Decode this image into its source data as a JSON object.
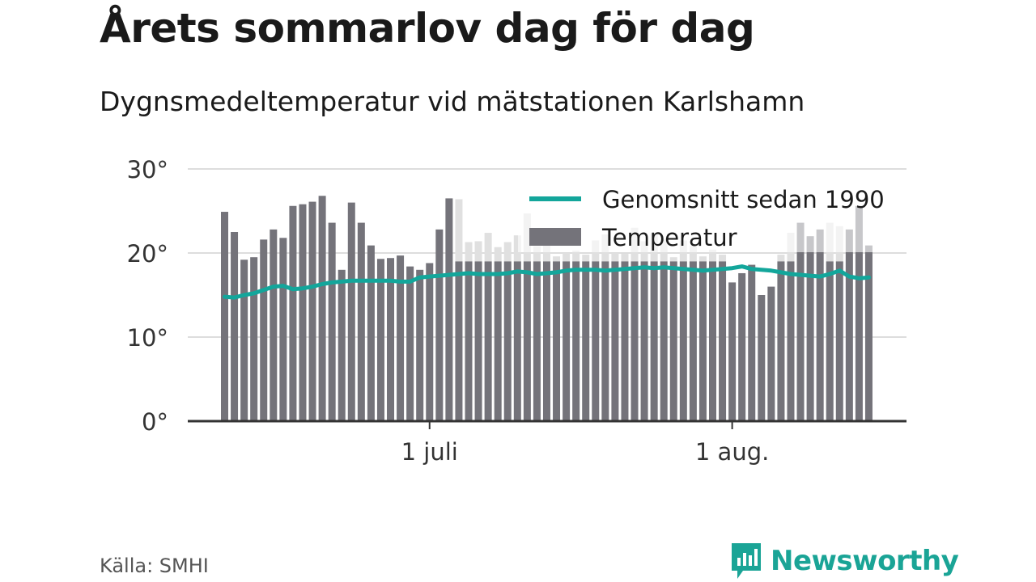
{
  "title": "Årets sommarlov dag för dag",
  "subtitle": "Dygnsmedeltemperatur vid mätstationen Karlshamn",
  "source": "Källa: SMHI",
  "brand": "Newsworthy",
  "colors": {
    "bar_actual": "#74737a",
    "bar_above": "#e0e0e0",
    "avg_line": "#13a69b",
    "brand": "#1aa496",
    "grid": "#dddddd",
    "axis": "#333333"
  },
  "chart_data": {
    "type": "bar",
    "ylim": [
      0,
      30
    ],
    "yticks": [
      0,
      10,
      20,
      30
    ],
    "ytick_labels": [
      "0°",
      "10°",
      "20°",
      "30°"
    ],
    "x_start": "2023-06-10",
    "x_end": "2023-08-16",
    "xticks": [
      {
        "date": "2023-07-01",
        "label": "1 juli"
      },
      {
        "date": "2023-08-01",
        "label": "1 aug."
      }
    ],
    "grid": true,
    "legend_position": "top-right",
    "series": [
      {
        "name": "Temperatur",
        "kind": "bar",
        "values": [
          24.9,
          22.5,
          19.2,
          19.5,
          21.6,
          22.8,
          21.8,
          25.6,
          25.8,
          26.1,
          26.8,
          23.6,
          18.0,
          26.0,
          23.6,
          20.9,
          19.3,
          19.4,
          19.7,
          18.4,
          18.0,
          18.8,
          22.8,
          26.5,
          26.4,
          21.3,
          21.4,
          22.4,
          20.7,
          21.3,
          22.1,
          24.7,
          20.8,
          21.0,
          19.6,
          20.0,
          20.3,
          19.8,
          21.5,
          22.2,
          20.0,
          19.9,
          23.0,
          21.4,
          22.3,
          21.6,
          19.5,
          21.5,
          20.9,
          19.6,
          20.4,
          19.8,
          16.5,
          17.6,
          18.6,
          15.0,
          16.0,
          19.8,
          22.4,
          23.6,
          22.0,
          22.8,
          23.6,
          23.2,
          22.8,
          25.6,
          20.9
        ]
      },
      {
        "name": "Genomsnitt sedan 1990",
        "kind": "line",
        "values": [
          14.8,
          14.7,
          15.0,
          15.2,
          15.6,
          16.0,
          16.1,
          15.7,
          15.8,
          16.0,
          16.3,
          16.5,
          16.6,
          16.7,
          16.7,
          16.7,
          16.7,
          16.7,
          16.6,
          16.6,
          17.1,
          17.2,
          17.3,
          17.4,
          17.5,
          17.6,
          17.5,
          17.5,
          17.5,
          17.6,
          17.8,
          17.7,
          17.5,
          17.6,
          17.7,
          17.9,
          18.0,
          18.0,
          18.0,
          17.9,
          18.0,
          18.1,
          18.2,
          18.3,
          18.2,
          18.3,
          18.2,
          18.1,
          18.0,
          17.9,
          18.0,
          18.1,
          18.2,
          18.4,
          18.1,
          18.0,
          17.9,
          17.7,
          17.5,
          17.4,
          17.3,
          17.2,
          17.5,
          17.9,
          17.2,
          17.0,
          17.1
        ]
      }
    ]
  }
}
